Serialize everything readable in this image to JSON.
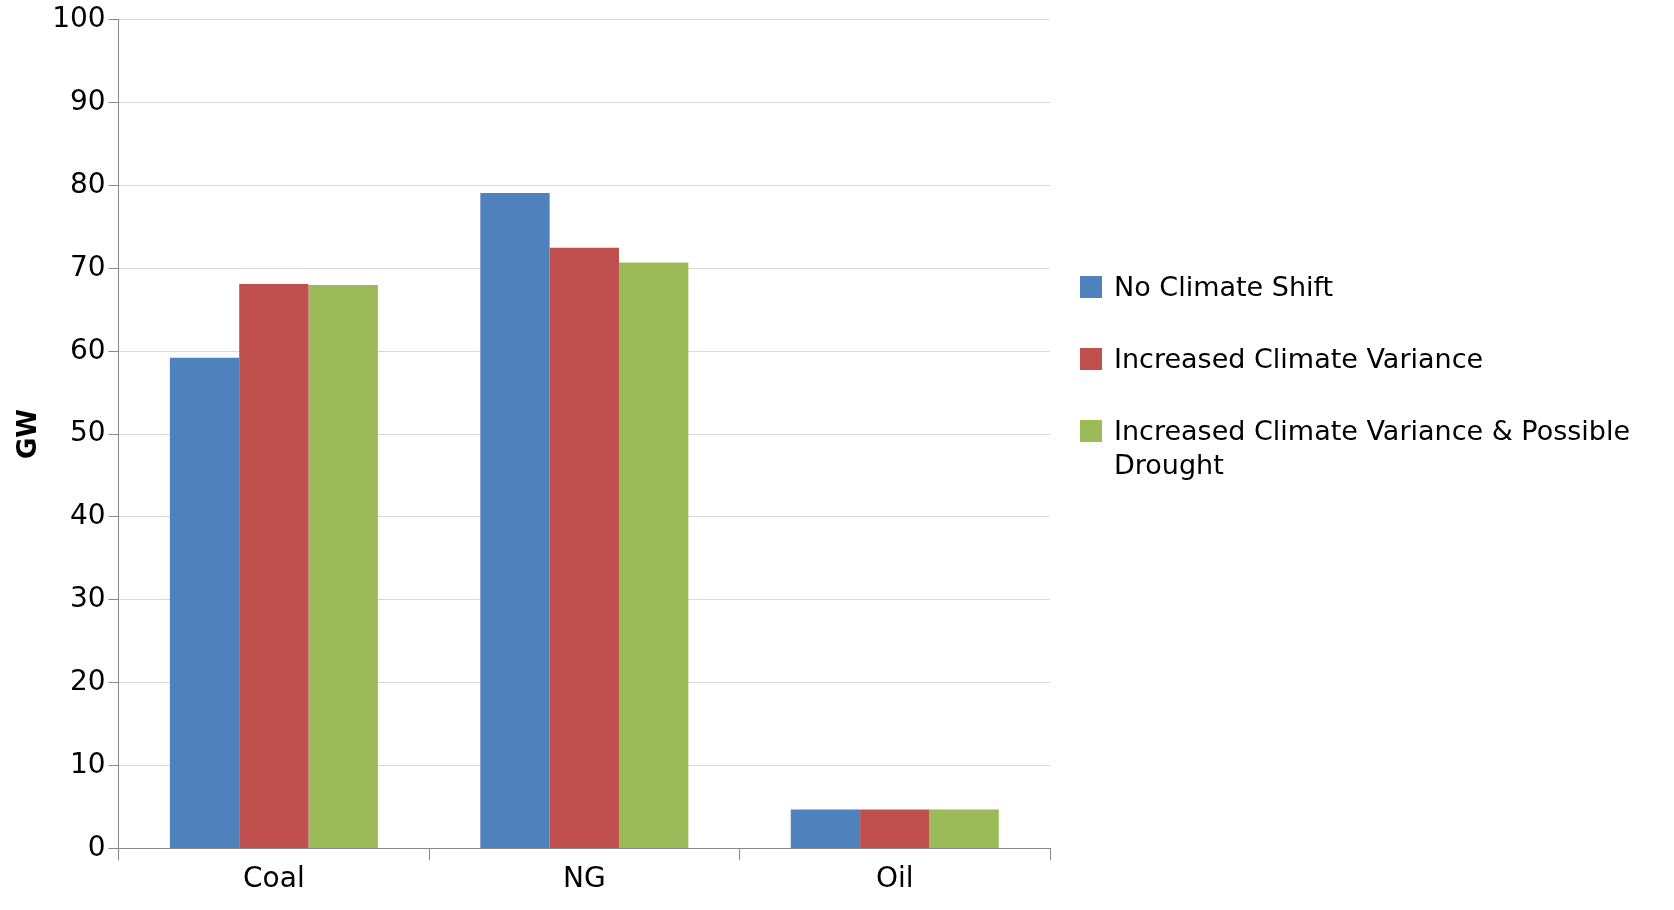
{
  "chart_data": {
    "type": "bar",
    "ylabel": "GW",
    "categories": [
      "Coal",
      "NG",
      "Oil"
    ],
    "series": [
      {
        "name": "No Climate Shift",
        "color": "#4f81bd",
        "values": [
          59.2,
          79.1,
          4.7
        ]
      },
      {
        "name": "Increased Climate Variance",
        "color": "#c0504d",
        "values": [
          68.1,
          72.5,
          4.7
        ]
      },
      {
        "name": "Increased Climate Variance & Possible Drought",
        "color": "#9bbb59",
        "values": [
          68.0,
          70.7,
          4.7
        ]
      }
    ],
    "ylim": [
      0,
      100
    ],
    "yticks": [
      0,
      10,
      20,
      30,
      40,
      50,
      60,
      70,
      80,
      90,
      100
    ],
    "grid": "y",
    "legend": "right"
  }
}
